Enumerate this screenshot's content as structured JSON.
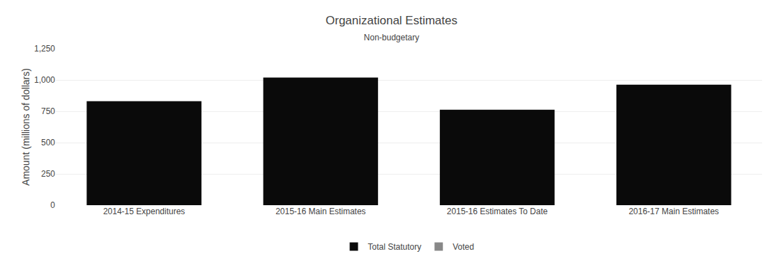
{
  "chart_data": {
    "type": "bar",
    "title": "Organizational Estimates",
    "subtitle": "Non-budgetary",
    "ylabel": "Amount (millions of dollars)",
    "categories": [
      "2014-15 Expenditures",
      "2015-16 Main Estimates",
      "2015-16 Estimates To Date",
      "2016-17 Main Estimates"
    ],
    "series": [
      {
        "name": "Total Statutory",
        "color": "#0a0a0a",
        "values": [
          830,
          1020,
          762,
          963
        ]
      },
      {
        "name": "Voted",
        "color": "#888888",
        "values": [
          0,
          0,
          0,
          0
        ]
      }
    ],
    "ylim": [
      0,
      1250
    ],
    "yticks": [
      0,
      250,
      500,
      750,
      {
        "value": 1000,
        "label": "1,000"
      },
      {
        "value": 1250,
        "label": "1,250"
      }
    ],
    "grid": true,
    "legend": "bottom"
  }
}
